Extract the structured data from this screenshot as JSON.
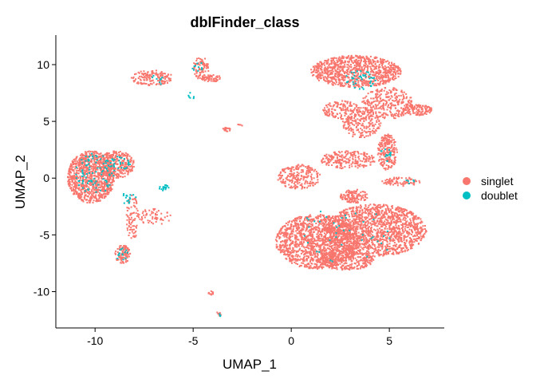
{
  "chart_data": {
    "type": "scatter",
    "title": "dblFinder_class",
    "xlabel": "UMAP_1",
    "ylabel": "UMAP_2",
    "xlim": [
      -12,
      7.8
    ],
    "ylim": [
      -13.2,
      12.6
    ],
    "x_ticks": [
      -10,
      -5,
      0,
      5
    ],
    "y_ticks": [
      10,
      5,
      0,
      -5,
      -10
    ],
    "x_tick_labels": [
      "-10",
      "-5",
      "0",
      "5"
    ],
    "y_tick_labels": [
      "10",
      "5",
      "0",
      "-5",
      "-10"
    ],
    "grid": false,
    "legend_position": "right",
    "series": [
      {
        "name": "singlet",
        "color": "#F8766D"
      },
      {
        "name": "doublet",
        "color": "#00BFC4"
      }
    ],
    "clusters": [
      {
        "series": "singlet",
        "cx": -10.2,
        "cy": 0.1,
        "rx": 1.2,
        "ry": 2.3,
        "n": 900
      },
      {
        "series": "singlet",
        "cx": -8.9,
        "cy": 1.2,
        "rx": 0.9,
        "ry": 1.2,
        "n": 300
      },
      {
        "series": "singlet",
        "cx": -8.6,
        "cy": -6.7,
        "rx": 0.4,
        "ry": 0.8,
        "n": 100
      },
      {
        "series": "singlet",
        "cx": -8.1,
        "cy": -3.5,
        "rx": 0.3,
        "ry": 2.0,
        "n": 80
      },
      {
        "series": "singlet",
        "cx": -7.0,
        "cy": -3.4,
        "rx": 0.9,
        "ry": 0.7,
        "n": 60
      },
      {
        "series": "singlet",
        "cx": -7.1,
        "cy": 8.8,
        "rx": 1.1,
        "ry": 0.7,
        "n": 150
      },
      {
        "series": "singlet",
        "cx": -4.6,
        "cy": 9.7,
        "rx": 0.4,
        "ry": 1.0,
        "n": 80
      },
      {
        "series": "singlet",
        "cx": -4.1,
        "cy": 8.8,
        "rx": 0.6,
        "ry": 0.3,
        "n": 60
      },
      {
        "series": "singlet",
        "cx": -3.3,
        "cy": 4.3,
        "rx": 0.2,
        "ry": 0.2,
        "n": 20
      },
      {
        "series": "singlet",
        "cx": -2.6,
        "cy": 4.7,
        "rx": 0.15,
        "ry": 0.15,
        "n": 5
      },
      {
        "series": "singlet",
        "cx": -4.1,
        "cy": -10.1,
        "rx": 0.15,
        "ry": 0.2,
        "n": 10
      },
      {
        "series": "singlet",
        "cx": -3.7,
        "cy": -12.0,
        "rx": 0.15,
        "ry": 0.2,
        "n": 10
      },
      {
        "series": "singlet",
        "cx": 3.3,
        "cy": 9.4,
        "rx": 2.3,
        "ry": 1.4,
        "n": 900
      },
      {
        "series": "singlet",
        "cx": 4.9,
        "cy": 6.6,
        "rx": 1.3,
        "ry": 1.4,
        "n": 300
      },
      {
        "series": "singlet",
        "cx": 6.4,
        "cy": 6.0,
        "rx": 0.8,
        "ry": 0.5,
        "n": 120
      },
      {
        "series": "singlet",
        "cx": 3.6,
        "cy": 4.7,
        "rx": 1.0,
        "ry": 1.2,
        "n": 200
      },
      {
        "series": "singlet",
        "cx": 2.6,
        "cy": 6.0,
        "rx": 1.0,
        "ry": 0.8,
        "n": 150
      },
      {
        "series": "singlet",
        "cx": 4.9,
        "cy": 2.3,
        "rx": 0.5,
        "ry": 1.6,
        "n": 200
      },
      {
        "series": "singlet",
        "cx": 2.9,
        "cy": 1.6,
        "rx": 1.4,
        "ry": 0.8,
        "n": 220
      },
      {
        "series": "singlet",
        "cx": 0.4,
        "cy": 0.1,
        "rx": 1.1,
        "ry": 1.1,
        "n": 220
      },
      {
        "series": "singlet",
        "cx": 3.2,
        "cy": -1.6,
        "rx": 0.7,
        "ry": 0.6,
        "n": 120
      },
      {
        "series": "singlet",
        "cx": 5.6,
        "cy": -0.3,
        "rx": 1.0,
        "ry": 0.4,
        "n": 80
      },
      {
        "series": "singlet",
        "cx": 1.3,
        "cy": -5.6,
        "rx": 2.1,
        "ry": 2.4,
        "n": 1400
      },
      {
        "series": "singlet",
        "cx": 4.3,
        "cy": -4.6,
        "rx": 2.6,
        "ry": 2.3,
        "n": 1500
      },
      {
        "series": "singlet",
        "cx": 2.8,
        "cy": -7.2,
        "rx": 1.4,
        "ry": 0.9,
        "n": 300
      },
      {
        "series": "doublet",
        "cx": -10.0,
        "cy": 0.4,
        "rx": 1.0,
        "ry": 1.8,
        "n": 90
      },
      {
        "series": "doublet",
        "cx": -8.8,
        "cy": 1.3,
        "rx": 0.6,
        "ry": 0.6,
        "n": 30
      },
      {
        "series": "doublet",
        "cx": -6.5,
        "cy": -0.8,
        "rx": 0.25,
        "ry": 0.3,
        "n": 20
      },
      {
        "series": "doublet",
        "cx": -8.4,
        "cy": -1.8,
        "rx": 0.5,
        "ry": 0.5,
        "n": 15
      },
      {
        "series": "doublet",
        "cx": -8.6,
        "cy": -6.8,
        "rx": 0.3,
        "ry": 0.6,
        "n": 15
      },
      {
        "series": "doublet",
        "cx": -5.1,
        "cy": 7.3,
        "rx": 0.2,
        "ry": 0.4,
        "n": 6
      },
      {
        "series": "doublet",
        "cx": -4.8,
        "cy": 9.8,
        "rx": 0.3,
        "ry": 0.6,
        "n": 10
      },
      {
        "series": "doublet",
        "cx": -6.9,
        "cy": 8.7,
        "rx": 0.5,
        "ry": 0.5,
        "n": 8
      },
      {
        "series": "doublet",
        "cx": -3.6,
        "cy": -12.1,
        "rx": 0.12,
        "ry": 0.15,
        "n": 4
      },
      {
        "series": "doublet",
        "cx": 3.5,
        "cy": 8.6,
        "rx": 0.8,
        "ry": 0.9,
        "n": 40
      },
      {
        "series": "doublet",
        "cx": 4.8,
        "cy": 2.0,
        "rx": 0.3,
        "ry": 0.8,
        "n": 15
      },
      {
        "series": "doublet",
        "cx": 6.1,
        "cy": -0.3,
        "rx": 0.3,
        "ry": 0.2,
        "n": 5
      },
      {
        "series": "doublet",
        "cx": 2.8,
        "cy": -5.0,
        "rx": 2.5,
        "ry": 2.5,
        "n": 40
      }
    ]
  }
}
